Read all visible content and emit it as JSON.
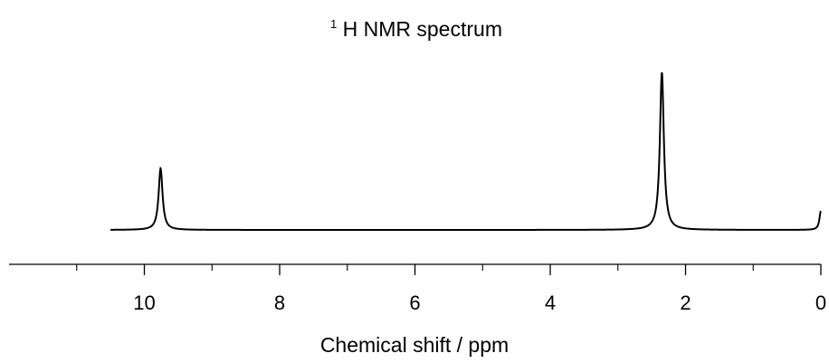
{
  "chart_data": {
    "type": "line",
    "title": {
      "superscript": "1",
      "text": "H NMR spectrum"
    },
    "xlabel": "Chemical shift / ppm",
    "ylabel": "",
    "x_reversed": true,
    "xlim": [
      12.0,
      0.0
    ],
    "ylim": [
      0,
      1
    ],
    "xticks": [
      10,
      8,
      6,
      4,
      2,
      0
    ],
    "xtick_labels": [
      "10",
      "8",
      "6",
      "4",
      "2",
      "0"
    ],
    "grid": false,
    "legend": "none",
    "line_color": "#000000",
    "series": [
      {
        "x_range": [
          10.5,
          0.0
        ],
        "baseline": 0.0,
        "peaks": [
          {
            "shift": 9.76,
            "height": 0.39,
            "width": 0.035
          },
          {
            "shift": 2.35,
            "height": 1.0,
            "width": 0.035
          },
          {
            "shift": 0.0,
            "height": 0.12,
            "width": 0.025
          }
        ]
      }
    ]
  }
}
